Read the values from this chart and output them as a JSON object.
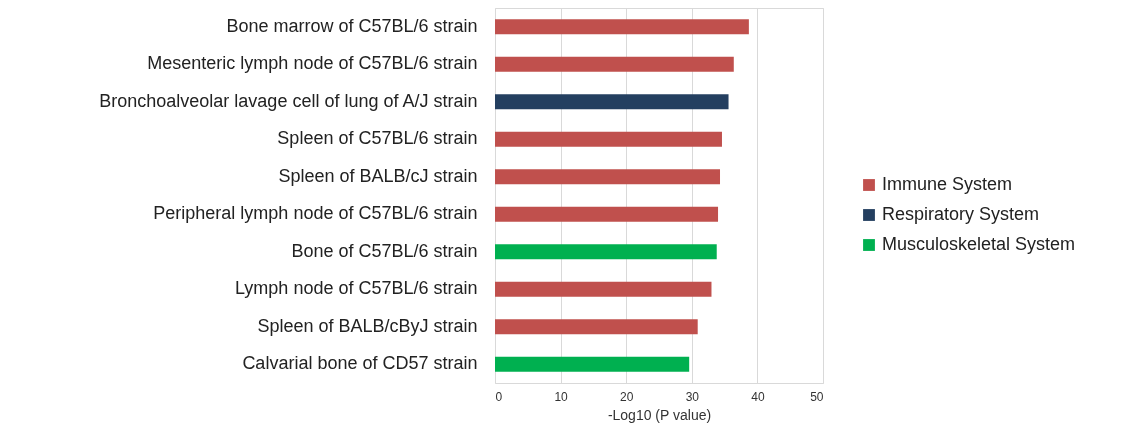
{
  "chart_data": {
    "type": "bar",
    "orientation": "horizontal",
    "xlabel": "-Log10 (P value)",
    "categories": [
      "Bone marrow of C57BL/6 strain",
      "Mesenteric lymph node of C57BL/6 strain",
      "Bronchoalveolar lavage cell of lung of A/J strain",
      "Spleen of C57BL/6 strain",
      "Spleen of BALB/cJ strain",
      "Peripheral lymph node of C57BL/6 strain",
      "Bone of C57BL/6 strain",
      "Lymph node of C57BL/6 strain",
      "Spleen of BALB/cByJ strain",
      "Calvarial bone of CD57 strain"
    ],
    "series": [
      {
        "name": "Immune System",
        "color": "#c0504d",
        "values": [
          38.7,
          36.4,
          null,
          34.6,
          34.3,
          34.0,
          null,
          33.0,
          30.9,
          null
        ]
      },
      {
        "name": "Respiratory System",
        "color": "#243f60",
        "values": [
          null,
          null,
          35.6,
          null,
          null,
          null,
          null,
          null,
          null,
          null
        ]
      },
      {
        "name": "Musculoskeletal System",
        "color": "#00b050",
        "values": [
          null,
          null,
          null,
          null,
          null,
          null,
          33.8,
          null,
          null,
          29.6
        ]
      }
    ],
    "xlim": [
      0,
      50
    ],
    "xticks": [
      0,
      10,
      20,
      30,
      40,
      50
    ],
    "grid": "x",
    "legend": "right"
  }
}
